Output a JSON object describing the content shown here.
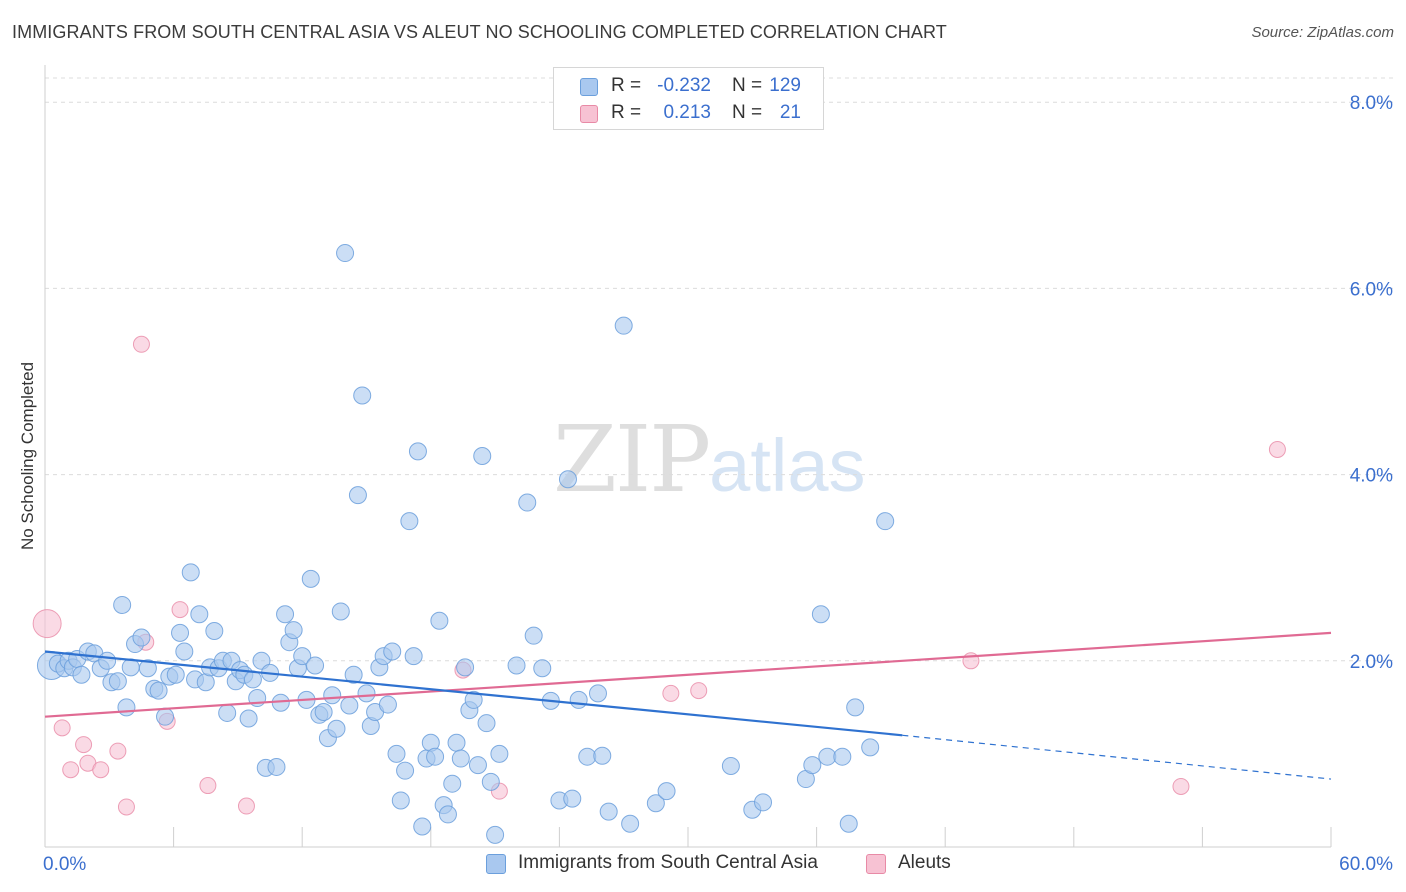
{
  "header": {
    "title": "IMMIGRANTS FROM SOUTH CENTRAL ASIA VS ALEUT NO SCHOOLING COMPLETED CORRELATION CHART",
    "source": "Source: ZipAtlas.com"
  },
  "watermark": {
    "zip": "ZIP",
    "atlas": "atlas"
  },
  "legend_top": {
    "rows": [
      {
        "r_label": "R =",
        "r_value": "-0.232",
        "n_label": "N =",
        "n_value": "129"
      },
      {
        "r_label": "R =",
        "r_value": "0.213",
        "n_label": "N =",
        "n_value": "21"
      }
    ]
  },
  "legend_bottom": {
    "items": [
      {
        "label": "Immigrants from South Central Asia"
      },
      {
        "label": "Aleuts"
      }
    ]
  },
  "colors": {
    "blue_fill": "#a9c8ef",
    "blue_stroke": "#6b9fdc",
    "blue_line": "#2f72d0",
    "pink_fill": "#f7c2d3",
    "pink_stroke": "#e88aa6",
    "pink_line": "#e06a93",
    "tick_label": "#3b6fce",
    "grid": "#dcdcdc"
  },
  "chart_data": {
    "type": "scatter",
    "title": "IMMIGRANTS FROM SOUTH CENTRAL ASIA VS ALEUT NO SCHOOLING COMPLETED CORRELATION CHART",
    "xlabel": "",
    "ylabel": "No Schooling Completed",
    "xlim": [
      0,
      60
    ],
    "ylim": [
      0,
      8.4
    ],
    "x_tick_labels": [
      "0.0%",
      "60.0%"
    ],
    "y_ticks": [
      2,
      4,
      6,
      8
    ],
    "y_tick_labels": [
      "2.0%",
      "4.0%",
      "6.0%",
      "8.0%"
    ],
    "grid": "horizontal dashed",
    "legend": "top-center and bottom",
    "series": [
      {
        "name": "Immigrants from South Central Asia",
        "R": -0.232,
        "N": 129,
        "trend": {
          "x0": 0,
          "y0": 2.1,
          "x1": 40,
          "y1": 1.2,
          "dash_to_x": 60,
          "dash_to_y": 0.73
        },
        "points": [
          [
            0.3,
            1.95
          ],
          [
            0.6,
            1.97
          ],
          [
            0.9,
            1.92
          ],
          [
            1.1,
            2.0
          ],
          [
            1.3,
            1.93
          ],
          [
            1.5,
            2.02
          ],
          [
            1.7,
            1.85
          ],
          [
            2.0,
            2.1
          ],
          [
            2.3,
            2.08
          ],
          [
            2.6,
            1.92
          ],
          [
            2.9,
            2.0
          ],
          [
            3.1,
            1.77
          ],
          [
            3.4,
            1.78
          ],
          [
            3.6,
            2.6
          ],
          [
            3.8,
            1.5
          ],
          [
            4.0,
            1.93
          ],
          [
            4.2,
            2.18
          ],
          [
            4.5,
            2.25
          ],
          [
            4.8,
            1.92
          ],
          [
            5.1,
            1.7
          ],
          [
            5.3,
            1.68
          ],
          [
            5.6,
            1.4
          ],
          [
            5.8,
            1.83
          ],
          [
            6.1,
            1.85
          ],
          [
            6.3,
            2.3
          ],
          [
            6.5,
            2.1
          ],
          [
            6.8,
            2.95
          ],
          [
            7.0,
            1.8
          ],
          [
            7.2,
            2.5
          ],
          [
            7.5,
            1.77
          ],
          [
            7.7,
            1.93
          ],
          [
            7.9,
            2.32
          ],
          [
            8.1,
            1.92
          ],
          [
            8.3,
            2.0
          ],
          [
            8.5,
            1.44
          ],
          [
            8.7,
            2.0
          ],
          [
            8.9,
            1.78
          ],
          [
            9.1,
            1.9
          ],
          [
            9.3,
            1.85
          ],
          [
            9.5,
            1.38
          ],
          [
            9.7,
            1.8
          ],
          [
            9.9,
            1.6
          ],
          [
            10.1,
            2.0
          ],
          [
            10.3,
            0.85
          ],
          [
            10.5,
            1.87
          ],
          [
            10.8,
            0.86
          ],
          [
            11.0,
            1.55
          ],
          [
            11.2,
            2.5
          ],
          [
            11.4,
            2.2
          ],
          [
            11.6,
            2.33
          ],
          [
            11.8,
            1.92
          ],
          [
            12.0,
            2.05
          ],
          [
            12.2,
            1.58
          ],
          [
            12.4,
            2.88
          ],
          [
            12.6,
            1.95
          ],
          [
            12.8,
            1.42
          ],
          [
            13.0,
            1.45
          ],
          [
            13.2,
            1.17
          ],
          [
            13.4,
            1.63
          ],
          [
            13.6,
            1.27
          ],
          [
            13.8,
            2.53
          ],
          [
            14.0,
            6.38
          ],
          [
            14.2,
            1.52
          ],
          [
            14.4,
            1.85
          ],
          [
            14.6,
            3.78
          ],
          [
            14.8,
            4.85
          ],
          [
            15.0,
            1.65
          ],
          [
            15.2,
            1.3
          ],
          [
            15.4,
            1.45
          ],
          [
            15.6,
            1.93
          ],
          [
            15.8,
            2.05
          ],
          [
            16.0,
            1.53
          ],
          [
            16.2,
            2.1
          ],
          [
            16.4,
            1.0
          ],
          [
            16.6,
            0.5
          ],
          [
            16.8,
            0.82
          ],
          [
            17.0,
            3.5
          ],
          [
            17.2,
            2.05
          ],
          [
            17.4,
            4.25
          ],
          [
            17.6,
            0.22
          ],
          [
            17.8,
            0.95
          ],
          [
            18.0,
            1.12
          ],
          [
            18.2,
            0.97
          ],
          [
            18.4,
            2.43
          ],
          [
            18.6,
            0.45
          ],
          [
            18.8,
            0.35
          ],
          [
            19.0,
            0.68
          ],
          [
            19.2,
            1.12
          ],
          [
            19.4,
            0.95
          ],
          [
            19.6,
            1.93
          ],
          [
            19.8,
            1.47
          ],
          [
            20.0,
            1.58
          ],
          [
            20.2,
            0.88
          ],
          [
            20.4,
            4.2
          ],
          [
            20.6,
            1.33
          ],
          [
            20.8,
            0.7
          ],
          [
            21.0,
            0.13
          ],
          [
            21.2,
            1.0
          ],
          [
            22.0,
            1.95
          ],
          [
            22.5,
            3.7
          ],
          [
            22.8,
            2.27
          ],
          [
            23.2,
            1.92
          ],
          [
            23.6,
            1.57
          ],
          [
            24.0,
            0.5
          ],
          [
            24.4,
            3.95
          ],
          [
            24.6,
            0.52
          ],
          [
            24.9,
            1.58
          ],
          [
            25.3,
            0.97
          ],
          [
            25.8,
            1.65
          ],
          [
            26.0,
            0.98
          ],
          [
            26.3,
            0.38
          ],
          [
            27.0,
            5.6
          ],
          [
            27.3,
            0.25
          ],
          [
            28.5,
            0.47
          ],
          [
            29.0,
            0.6
          ],
          [
            32.0,
            0.87
          ],
          [
            33.0,
            0.4
          ],
          [
            33.5,
            0.48
          ],
          [
            35.5,
            0.73
          ],
          [
            35.8,
            0.88
          ],
          [
            36.2,
            2.5
          ],
          [
            36.5,
            0.97
          ],
          [
            37.2,
            0.97
          ],
          [
            37.5,
            0.25
          ],
          [
            37.8,
            1.5
          ],
          [
            38.5,
            1.07
          ],
          [
            39.2,
            3.5
          ]
        ]
      },
      {
        "name": "Aleuts",
        "R": 0.213,
        "N": 21,
        "trend": {
          "x0": 0,
          "y0": 1.4,
          "x1": 60,
          "y1": 2.3
        },
        "points": [
          [
            0.1,
            2.4
          ],
          [
            0.8,
            1.28
          ],
          [
            1.2,
            0.83
          ],
          [
            1.8,
            1.1
          ],
          [
            2.0,
            0.9
          ],
          [
            2.6,
            0.83
          ],
          [
            3.4,
            1.03
          ],
          [
            3.8,
            0.43
          ],
          [
            4.5,
            5.4
          ],
          [
            4.7,
            2.2
          ],
          [
            5.7,
            1.35
          ],
          [
            6.3,
            2.55
          ],
          [
            7.6,
            0.66
          ],
          [
            9.4,
            0.44
          ],
          [
            19.5,
            1.9
          ],
          [
            21.2,
            0.6
          ],
          [
            29.2,
            1.65
          ],
          [
            30.5,
            1.68
          ],
          [
            43.2,
            2.0
          ],
          [
            53.0,
            0.65
          ],
          [
            57.5,
            4.27
          ]
        ]
      }
    ]
  }
}
